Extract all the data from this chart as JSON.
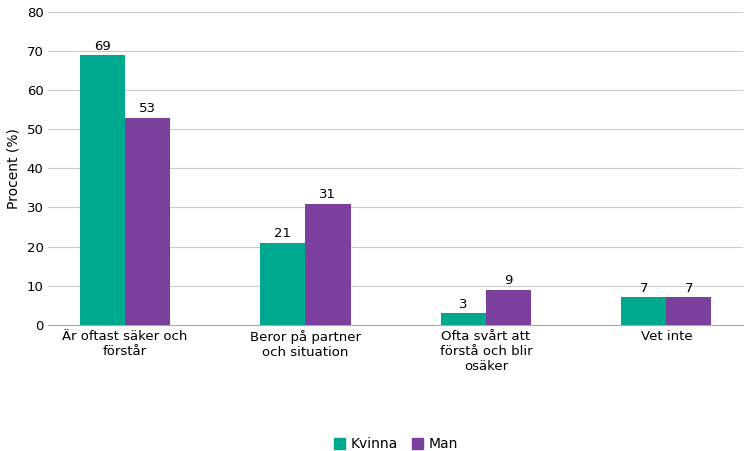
{
  "categories": [
    "Är oftast säker och\nförstår",
    "Beror på partner\noch situation",
    "Ofta svårt att\nförstå och blir\nosäker",
    "Vet inte"
  ],
  "kvinna_values": [
    69,
    21,
    3,
    7
  ],
  "man_values": [
    53,
    31,
    9,
    7
  ],
  "kvinna_color": "#00A88E",
  "man_color": "#7B3F9E",
  "ylabel": "Procent (%)",
  "ylim": [
    0,
    80
  ],
  "yticks": [
    0,
    10,
    20,
    30,
    40,
    50,
    60,
    70,
    80
  ],
  "legend_kvinna": "Kvinna",
  "legend_man": "Man",
  "bar_width": 0.25,
  "label_fontsize": 9.5,
  "tick_fontsize": 9.5,
  "legend_fontsize": 10,
  "ylabel_fontsize": 10,
  "background_color": "#ffffff",
  "grid_color": "#cccccc"
}
